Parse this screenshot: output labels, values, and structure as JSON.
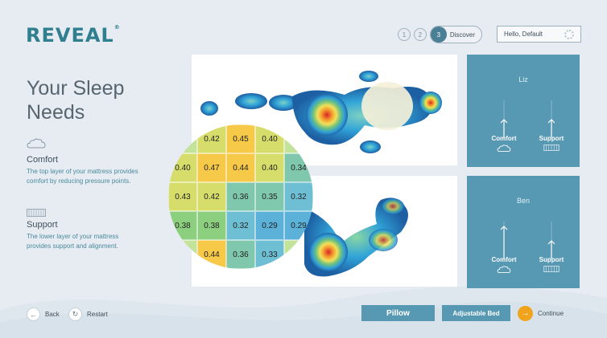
{
  "brand": {
    "logo": "REVEAL",
    "trademark": "®"
  },
  "stepper": {
    "steps": [
      "1",
      "2",
      "3"
    ],
    "active_label": "Discover"
  },
  "user_select": {
    "value": "Hello, Default"
  },
  "title": "Your Sleep Needs",
  "comfort": {
    "heading": "Comfort",
    "body": "The top layer of your mattress provides comfort by reducing pressure points."
  },
  "support": {
    "heading": "Support",
    "body": "The lower layer of your mattress provides support and alignment."
  },
  "sleepers": [
    {
      "name": "Liz",
      "comfort_label": "Comfort",
      "support_label": "Support",
      "comfort_level": 0.45,
      "support_level": 0.45
    },
    {
      "name": "Ben",
      "comfort_label": "Comfort",
      "support_label": "Support",
      "comfort_level": 0.8,
      "support_level": 0.45
    }
  ],
  "pressure_grid": [
    [
      "",
      "0.42",
      "0.45",
      "0.40",
      ""
    ],
    [
      "0.40",
      "0.47",
      "0.44",
      "0.40",
      "0.34"
    ],
    [
      "0.43",
      "0.42",
      "0.36",
      "0.35",
      "0.32"
    ],
    [
      "0.38",
      "0.38",
      "0.32",
      "0.29",
      "0.29"
    ],
    [
      "",
      "0.44",
      "0.36",
      "0.33",
      ""
    ]
  ],
  "colors": {
    "accent": "#5798b3",
    "brand": "#2f7f8f",
    "continue": "#f0a31c",
    "heat_hot": "#e3342f",
    "heat_warm": "#f7c948",
    "heat_mid": "#8ccf7e",
    "heat_cool": "#38a6d6",
    "heat_cold": "#2a6fb3"
  },
  "nav": {
    "back_label": "Back",
    "restart_label": "Restart",
    "pillow_label": "Pillow",
    "adjustable_label": "Adjustable Bed",
    "continue_label": "Continue"
  },
  "icons": {
    "back": "arrow-left-icon",
    "restart": "restart-icon",
    "continue": "arrow-right-icon",
    "comfort": "cloud-icon",
    "support": "coil-icon",
    "settings": "gear-icon"
  }
}
